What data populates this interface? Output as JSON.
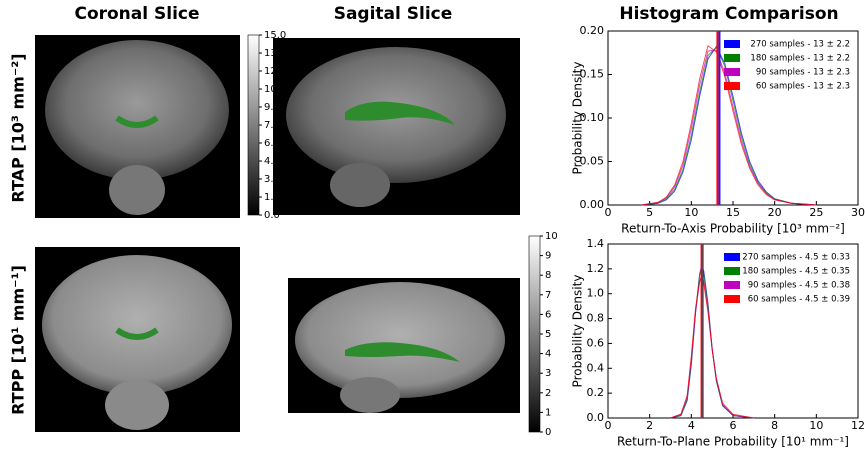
{
  "column_titles": [
    "Coronal Slice",
    "Sagital Slice",
    "Histogram Comparison"
  ],
  "row_labels": [
    "RTAP [10³ mm⁻²]",
    "RTPP [10¹ mm⁻¹]"
  ],
  "colorbars": [
    {
      "ylim": [
        0,
        15
      ],
      "yticks": [
        {
          "value": 0,
          "label": "0.0"
        },
        {
          "value": 1.5,
          "label": "1.5"
        },
        {
          "value": 3,
          "label": "3.0"
        },
        {
          "value": 4.5,
          "label": "4.5"
        },
        {
          "value": 6,
          "label": "6.0"
        },
        {
          "value": 7.5,
          "label": "7.5"
        },
        {
          "value": 9,
          "label": "9.0"
        },
        {
          "value": 10.5,
          "label": "10.5"
        },
        {
          "value": 12,
          "label": "12.0"
        },
        {
          "value": 13.5,
          "label": "13.5"
        },
        {
          "value": 15,
          "label": "15.0"
        }
      ]
    },
    {
      "ylim": [
        0,
        10
      ],
      "yticks": [
        0,
        1,
        2,
        3,
        4,
        5,
        6,
        7,
        8,
        9,
        10
      ]
    }
  ],
  "chart_data": [
    {
      "type": "line",
      "xlabel": "Return-To-Axis Probability [10³ mm⁻²]",
      "ylabel": "Probability Density",
      "xlim": [
        0,
        30
      ],
      "xticks": [
        0,
        5,
        10,
        15,
        20,
        25,
        30
      ],
      "ylim": [
        0,
        0.2
      ],
      "yticks": [
        {
          "value": 0,
          "label": "0.00"
        },
        {
          "value": 0.05,
          "label": "0.05"
        },
        {
          "value": 0.1,
          "label": "0.10"
        },
        {
          "value": 0.15,
          "label": "0.15"
        },
        {
          "value": 0.2,
          "label": "0.20"
        }
      ],
      "legend": "upper right",
      "x": [
        4,
        6,
        7,
        8,
        9,
        10,
        11,
        12,
        13,
        14,
        15,
        16,
        17,
        18,
        19,
        20,
        22,
        25
      ],
      "series": [
        {
          "name": "270 samples - 13 ± 2.2",
          "color": "#0000ff",
          "mean": 13.4,
          "values": [
            0,
            0.002,
            0.006,
            0.016,
            0.038,
            0.075,
            0.125,
            0.168,
            0.182,
            0.163,
            0.125,
            0.083,
            0.05,
            0.028,
            0.015,
            0.007,
            0.002,
            0
          ]
        },
        {
          "name": "180 samples - 13 ± 2.2",
          "color": "#008000",
          "mean": 13.3,
          "values": [
            0,
            0.002,
            0.007,
            0.018,
            0.041,
            0.08,
            0.13,
            0.172,
            0.181,
            0.16,
            0.12,
            0.079,
            0.047,
            0.026,
            0.014,
            0.007,
            0.002,
            0
          ]
        },
        {
          "name": "90 samples - 13 ± 2.3",
          "color": "#bf00bf",
          "mean": 13.2,
          "values": [
            0,
            0.003,
            0.008,
            0.021,
            0.046,
            0.088,
            0.138,
            0.177,
            0.178,
            0.152,
            0.113,
            0.074,
            0.044,
            0.025,
            0.013,
            0.006,
            0.002,
            0
          ]
        },
        {
          "name": "60 samples - 13 ± 2.3",
          "color": "#ff0000",
          "mean": 13.1,
          "values": [
            0,
            0.003,
            0.009,
            0.023,
            0.05,
            0.094,
            0.145,
            0.183,
            0.176,
            0.148,
            0.108,
            0.07,
            0.042,
            0.023,
            0.012,
            0.006,
            0.002,
            0
          ]
        }
      ]
    },
    {
      "type": "line",
      "xlabel": "Return-To-Plane Probability [10¹ mm⁻¹]",
      "ylabel": "Probability Density",
      "xlim": [
        0,
        12
      ],
      "xticks": [
        0,
        2,
        4,
        6,
        8,
        10,
        12
      ],
      "ylim": [
        0,
        1.4
      ],
      "yticks": [
        {
          "value": 0,
          "label": "0.0"
        },
        {
          "value": 0.2,
          "label": "0.2"
        },
        {
          "value": 0.4,
          "label": "0.4"
        },
        {
          "value": 0.6,
          "label": "0.6"
        },
        {
          "value": 0.8,
          "label": "0.8"
        },
        {
          "value": 1,
          "label": "1.0"
        },
        {
          "value": 1.2,
          "label": "1.2"
        },
        {
          "value": 1.4,
          "label": "1.4"
        }
      ],
      "legend": "upper right",
      "x": [
        3,
        3.5,
        3.8,
        4,
        4.2,
        4.4,
        4.5,
        4.6,
        4.8,
        5,
        5.2,
        5.5,
        6,
        7
      ],
      "series": [
        {
          "name": "270 samples - 4.5 ± 0.33",
          "color": "#0000ff",
          "mean": 4.55,
          "values": [
            0,
            0.02,
            0.14,
            0.43,
            0.84,
            1.16,
            1.23,
            1.18,
            0.92,
            0.56,
            0.3,
            0.1,
            0.02,
            0
          ]
        },
        {
          "name": "180 samples - 4.5 ± 0.35",
          "color": "#008000",
          "mean": 4.53,
          "values": [
            0,
            0.02,
            0.15,
            0.45,
            0.86,
            1.15,
            1.2,
            1.15,
            0.9,
            0.55,
            0.3,
            0.1,
            0.02,
            0
          ]
        },
        {
          "name": "90 samples - 4.5 ± 0.38",
          "color": "#bf00bf",
          "mean": 4.5,
          "values": [
            0,
            0.03,
            0.17,
            0.47,
            0.85,
            1.1,
            1.15,
            1.1,
            0.87,
            0.56,
            0.32,
            0.11,
            0.02,
            0
          ]
        },
        {
          "name": "60 samples - 4.5 ± 0.39",
          "color": "#ff0000",
          "mean": 4.48,
          "values": [
            0,
            0.03,
            0.18,
            0.5,
            0.88,
            1.1,
            1.13,
            1.08,
            0.85,
            0.55,
            0.32,
            0.12,
            0.03,
            0
          ]
        }
      ]
    }
  ]
}
